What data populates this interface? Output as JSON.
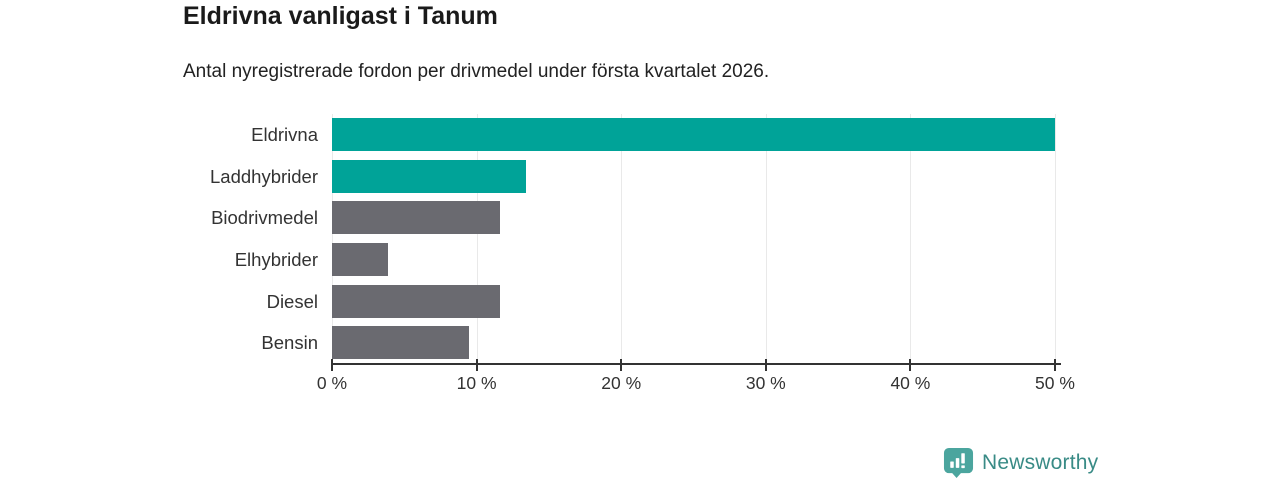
{
  "chart_data": {
    "type": "bar",
    "orientation": "horizontal",
    "title": "Eldrivna vanligast i Tanum",
    "subtitle": "Antal nyregistrerade fordon per drivmedel under första kvartalet 2026.",
    "categories": [
      "Eldrivna",
      "Laddhybrider",
      "Biodrivmedel",
      "Elhybrider",
      "Diesel",
      "Bensin"
    ],
    "values": [
      50.0,
      13.4,
      11.6,
      3.9,
      11.6,
      9.5
    ],
    "unit": "%",
    "xlabel": "",
    "ylabel": "",
    "xlim": [
      0,
      50
    ],
    "x_ticks": [
      0,
      10,
      20,
      30,
      40,
      50
    ],
    "x_tick_labels": [
      "0 %",
      "10 %",
      "20 %",
      "30 %",
      "40 %",
      "50 %"
    ],
    "bar_colors": [
      "#00a398",
      "#00a398",
      "#6a6a70",
      "#6a6a70",
      "#6a6a70",
      "#6a6a70"
    ],
    "highlight_color": "#00a398",
    "default_color": "#6a6a70",
    "grid": "vertical",
    "legend": "none"
  },
  "branding": {
    "logo_text": "Newsworthy",
    "wordmark_color": "#398b86",
    "icon_color": "#4ba59e"
  }
}
